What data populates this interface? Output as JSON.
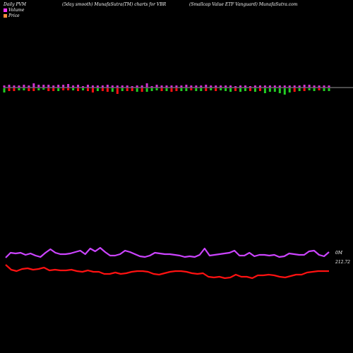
{
  "header": {
    "left": "Daily PVM",
    "center": "(5day smooth) MunafaSutra(TM) charts for VBR",
    "right": "(Smallcap Value   ETF Vanguard) MunafaSutra.com"
  },
  "legend": [
    {
      "label": "Volume",
      "color": "#ff33ff"
    },
    {
      "label": "Price",
      "color": "#ff8c3a"
    }
  ],
  "right_labels": {
    "volume": "0M",
    "price": "212.72"
  },
  "colors": {
    "background": "#000000",
    "baseline": "#cccccc",
    "volume_up": "#cc33cc",
    "volume_down_red": "#ff1111",
    "volume_down_green": "#22cc22",
    "volume_line": "#cc44ff",
    "price_line": "#ff1111"
  },
  "chart_data": {
    "type": "bar",
    "volume_bars": {
      "up": [
        3,
        4,
        3,
        3,
        4,
        3,
        6,
        4,
        4,
        4,
        3,
        4,
        4,
        5,
        3,
        4,
        2,
        4,
        3,
        3,
        3,
        4,
        3,
        3,
        3,
        3,
        2,
        3,
        3,
        6,
        2,
        4,
        3,
        3,
        3,
        3,
        3,
        4,
        3,
        3,
        3,
        4,
        3,
        3,
        3,
        3,
        3,
        2,
        3,
        3,
        2,
        3,
        3,
        3,
        3,
        3,
        3,
        3,
        3,
        3,
        3,
        4,
        4,
        3,
        3,
        3,
        3
      ],
      "down": [
        6,
        4,
        4,
        3,
        3,
        4,
        4,
        3,
        2,
        4,
        4,
        4,
        3,
        3,
        3,
        4,
        3,
        4,
        6,
        4,
        4,
        5,
        5,
        8,
        4,
        4,
        4,
        5,
        5,
        5,
        4,
        3,
        4,
        4,
        5,
        4,
        4,
        4,
        3,
        4,
        4,
        4,
        3,
        4,
        3,
        4,
        5,
        4,
        5,
        4,
        4,
        5,
        4,
        7,
        5,
        5,
        7,
        9,
        6,
        5,
        4,
        4,
        3,
        4,
        3,
        4,
        4
      ],
      "down_color": [
        "g",
        "r",
        "r",
        "g",
        "g",
        "r",
        "r",
        "g",
        "g",
        "r",
        "r",
        "g",
        "r",
        "r",
        "g",
        "r",
        "g",
        "r",
        "r",
        "g",
        "r",
        "r",
        "g",
        "r",
        "g",
        "r",
        "r",
        "g",
        "r",
        "g",
        "g",
        "g",
        "r",
        "g",
        "r",
        "r",
        "g",
        "g",
        "r",
        "g",
        "g",
        "r",
        "g",
        "r",
        "g",
        "g",
        "g",
        "r",
        "g",
        "g",
        "r",
        "g",
        "r",
        "g",
        "g",
        "g",
        "g",
        "g",
        "g",
        "r",
        "g",
        "r",
        "g",
        "g",
        "r",
        "g",
        "g"
      ]
    },
    "volume_line": [
      49,
      42,
      43,
      42,
      45,
      43,
      46,
      48,
      42,
      37,
      42,
      44,
      44,
      43,
      41,
      39,
      44,
      36,
      40,
      35,
      41,
      46,
      46,
      44,
      39,
      41,
      44,
      47,
      48,
      46,
      42,
      43,
      44,
      44,
      45,
      46,
      48,
      47,
      48,
      45,
      36,
      46,
      45,
      44,
      43,
      42,
      39,
      46,
      46,
      42,
      47,
      45,
      45,
      46,
      45,
      48,
      47,
      43,
      44,
      45,
      45,
      40,
      39,
      45,
      47,
      41
    ],
    "price_line": [
      52,
      59,
      61,
      58,
      57,
      59,
      58,
      56,
      60,
      59,
      60,
      60,
      59,
      61,
      62,
      60,
      62,
      62,
      65,
      65,
      63,
      65,
      64,
      62,
      61,
      61,
      62,
      65,
      66,
      64,
      62,
      61,
      61,
      62,
      64,
      65,
      64,
      69,
      70,
      69,
      71,
      70,
      66,
      69,
      69,
      71,
      67,
      67,
      66,
      67,
      69,
      70,
      68,
      66,
      66,
      63,
      62,
      61,
      61,
      61
    ],
    "last_price": 212.72
  }
}
